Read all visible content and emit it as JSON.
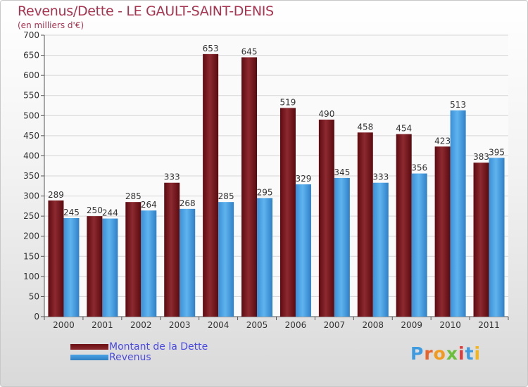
{
  "colors": {
    "dette": "#6b0f14",
    "revenus": "#4aa3e6",
    "title": "#a8334f",
    "legend_text": "#4a4adf"
  },
  "legend": {
    "dette": "Montant de la Dette",
    "revenus": "Revenus"
  },
  "logo": {
    "text": "Proxiti"
  },
  "chart_data": {
    "type": "bar",
    "title": "Revenus/Dette - LE GAULT-SAINT-DENIS",
    "subtitle": "(en milliers d'€)",
    "categories": [
      "2000",
      "2001",
      "2002",
      "2003",
      "2004",
      "2005",
      "2006",
      "2007",
      "2008",
      "2009",
      "2010",
      "2011"
    ],
    "series": [
      {
        "name": "Montant de la Dette",
        "values": [
          289,
          250,
          285,
          333,
          653,
          645,
          519,
          490,
          458,
          454,
          423,
          383
        ]
      },
      {
        "name": "Revenus",
        "values": [
          245,
          244,
          264,
          268,
          285,
          295,
          329,
          345,
          333,
          356,
          513,
          395
        ]
      }
    ],
    "ylim": [
      0,
      700
    ],
    "yticks": [
      0,
      50,
      100,
      150,
      200,
      250,
      300,
      350,
      400,
      450,
      500,
      550,
      600,
      650,
      700
    ],
    "grid": true,
    "xlabel": "",
    "ylabel": ""
  }
}
